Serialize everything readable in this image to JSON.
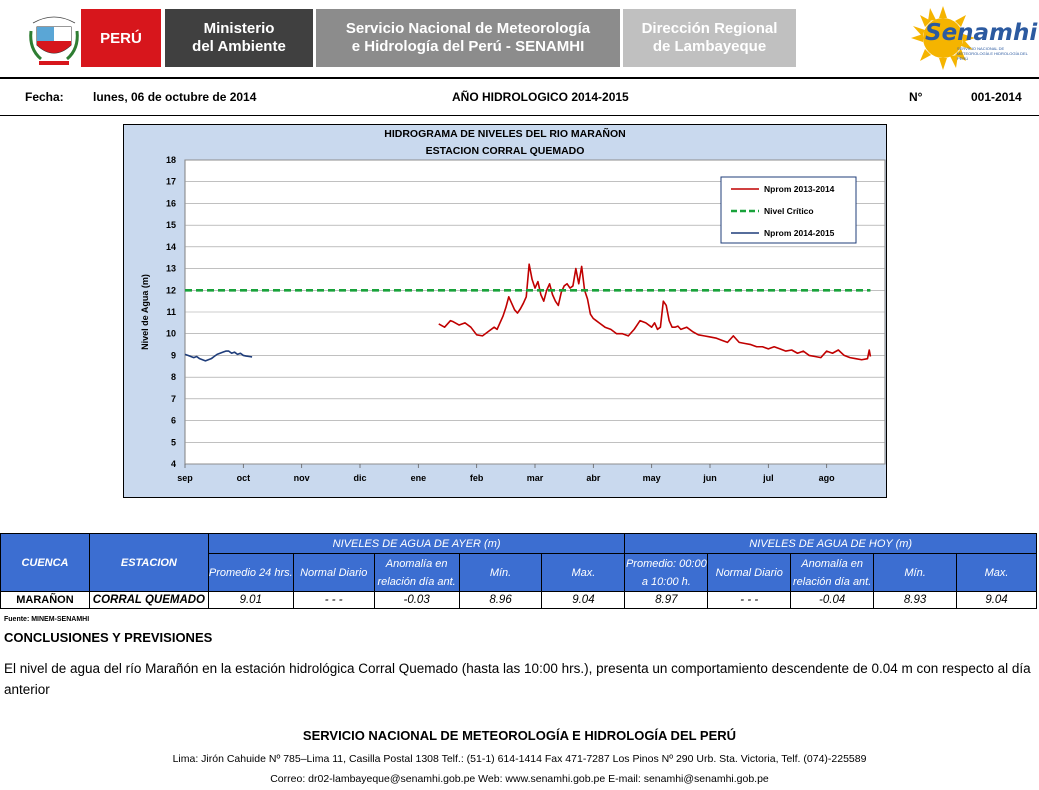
{
  "header": {
    "seal_text": "REPÚBLICA DEL PERÚ",
    "peru": "PERÚ",
    "ministerio_line1": "Ministerio",
    "ministerio_line2": "del Ambiente",
    "senamhi_line1": "Servicio Nacional de Meteorología",
    "senamhi_line2": "e Hidrología del Perú - SENAMHI",
    "direccion_line1": "Dirección Regional",
    "direccion_line2": "de Lambayeque",
    "logo_name": "Senamhi",
    "logo_sub": "SERVICIO NACIONAL DE METEOROLOGÍA E HIDROLOGÍA DEL PERÚ",
    "colors": {
      "peru_red": "#d7161c",
      "minam_gray": "#404040",
      "senamhi_gray": "#8c8c8c",
      "direccion_gray": "#c0c0c0",
      "sun": "#f5b400",
      "logo_blue": "#2c5aa0"
    }
  },
  "info": {
    "fecha_label": "Fecha:",
    "fecha_value": "lunes, 06 de octubre de 2014",
    "anio": "AÑO HIDROLOGICO 2014-2015",
    "numero_label": "N°",
    "numero_value": "001-2014"
  },
  "chart_data": {
    "type": "line",
    "title": "HIDROGRAMA  DE NIVELES  DEL RIO MARAÑON",
    "subtitle": "ESTACION  CORRAL QUEMADO",
    "ylabel": "Nivel de Agua (m)",
    "xlabel": "",
    "ylim": [
      4,
      18
    ],
    "yticks": [
      "4",
      "5",
      "6",
      "7",
      "8",
      "9",
      "10",
      "11",
      "12",
      "13",
      "14",
      "15",
      "16",
      "17",
      "18"
    ],
    "categories": [
      "sep",
      "oct",
      "nov",
      "dic",
      "ene",
      "feb",
      "mar",
      "abr",
      "may",
      "jun",
      "jul",
      "ago"
    ],
    "grid": true,
    "legend_position": "top-right",
    "background": "#c9d9ee",
    "series": [
      {
        "name": "Nprom 2013-2014",
        "color": "#c00000",
        "style": "solid",
        "x": [
          4.35,
          4.45,
          4.55,
          4.6,
          4.7,
          4.8,
          4.9,
          5.0,
          5.1,
          5.2,
          5.3,
          5.35,
          5.4,
          5.45,
          5.5,
          5.55,
          5.6,
          5.65,
          5.7,
          5.75,
          5.8,
          5.85,
          5.9,
          5.95,
          6.0,
          6.05,
          6.1,
          6.15,
          6.2,
          6.25,
          6.3,
          6.35,
          6.4,
          6.45,
          6.5,
          6.55,
          6.6,
          6.65,
          6.7,
          6.75,
          6.8,
          6.85,
          6.9,
          6.95,
          7.0,
          7.05,
          7.1,
          7.2,
          7.3,
          7.4,
          7.5,
          7.6,
          7.7,
          7.8,
          7.9,
          8.0,
          8.05,
          8.1,
          8.15,
          8.2,
          8.25,
          8.3,
          8.35,
          8.4,
          8.45,
          8.5,
          8.6,
          8.7,
          8.8,
          8.9,
          9.0,
          9.1,
          9.2,
          9.3,
          9.4,
          9.5,
          9.6,
          9.7,
          9.8,
          9.9,
          10.0,
          10.1,
          10.2,
          10.3,
          10.4,
          10.5,
          10.6,
          10.7,
          10.8,
          10.9,
          11.0,
          11.1,
          11.2,
          11.3,
          11.4,
          11.5,
          11.6,
          11.7,
          11.73,
          11.75
        ],
        "values": [
          10.45,
          10.3,
          10.6,
          10.55,
          10.4,
          10.5,
          10.3,
          9.95,
          9.9,
          10.1,
          10.3,
          10.2,
          10.5,
          10.8,
          11.2,
          11.7,
          11.4,
          11.1,
          10.95,
          11.15,
          11.4,
          11.7,
          13.2,
          12.5,
          12.1,
          12.4,
          11.8,
          11.5,
          12.0,
          12.3,
          11.8,
          11.5,
          11.3,
          11.9,
          12.2,
          12.3,
          12.1,
          12.2,
          13.0,
          12.3,
          13.1,
          12.0,
          11.6,
          10.9,
          10.7,
          10.6,
          10.5,
          10.3,
          10.2,
          10.0,
          10.0,
          9.9,
          10.2,
          10.6,
          10.5,
          10.3,
          10.5,
          10.2,
          10.3,
          11.5,
          11.3,
          10.6,
          10.3,
          10.3,
          10.35,
          10.2,
          10.3,
          10.1,
          9.95,
          9.9,
          9.85,
          9.8,
          9.7,
          9.6,
          9.9,
          9.6,
          9.55,
          9.5,
          9.4,
          9.4,
          9.3,
          9.4,
          9.3,
          9.2,
          9.25,
          9.1,
          9.2,
          9.0,
          8.95,
          8.9,
          9.2,
          9.1,
          9.25,
          9.0,
          8.9,
          8.85,
          8.8,
          8.85,
          9.25,
          8.95
        ]
      },
      {
        "name": "Nivel Crítico",
        "color": "#19a23b",
        "style": "dashed",
        "x": [
          0,
          11.75
        ],
        "values": [
          12.0,
          12.0
        ]
      },
      {
        "name": "Nprom 2014-2015",
        "color": "#1f3d7a",
        "style": "solid",
        "x": [
          0.0,
          0.05,
          0.1,
          0.15,
          0.2,
          0.25,
          0.3,
          0.35,
          0.4,
          0.45,
          0.5,
          0.55,
          0.6,
          0.65,
          0.7,
          0.75,
          0.8,
          0.85,
          0.9,
          0.95,
          1.0,
          1.05,
          1.1,
          1.15
        ],
        "values": [
          9.05,
          9.0,
          8.95,
          8.9,
          8.95,
          8.85,
          8.8,
          8.75,
          8.8,
          8.85,
          8.95,
          9.05,
          9.1,
          9.15,
          9.2,
          9.2,
          9.1,
          9.15,
          9.05,
          9.1,
          9.0,
          8.97,
          8.95,
          8.93
        ]
      }
    ]
  },
  "table": {
    "col_cuenca": "CUENCA",
    "col_estacion": "ESTACION",
    "group_ayer": "NIVELES DE AGUA DE AYER (m)",
    "group_hoy": "NIVELES DE AGUA DE HOY (m)",
    "sub_ayer": [
      "Promedio  24 hrs.",
      "Normal Diario",
      "Anomalía en relación día ant.",
      "Mín.",
      "Max."
    ],
    "sub_hoy": [
      "Promedio: 00:00 a 10:00  h.",
      "Normal Diario",
      "Anomalía en relación día ant.",
      "Mín.",
      "Max."
    ],
    "row": {
      "cuenca": "MARAÑON",
      "estacion": "CORRAL QUEMADO",
      "ayer": [
        "9.01",
        "- - -",
        "-0.03",
        "8.96",
        "9.04"
      ],
      "hoy": [
        "8.97",
        "- - -",
        "-0.04",
        "8.93",
        "9.04"
      ]
    }
  },
  "fuente": "Fuente: MINEM-SENAMHI",
  "conclusiones": {
    "title": "CONCLUSIONES Y PREVISIONES",
    "text": "El nivel de agua del río Marañón en la estación hidrológica Corral Quemado (hasta las 10:00 hrs.), presenta un comportamiento descendente de 0.04 m con respecto al día anterior"
  },
  "footer": {
    "line1": "SERVICIO NACIONAL DE METEOROLOGÍA E HIDROLOGÍA DEL PERÚ",
    "line2": "Lima: Jirón  Cahuide Nº 785–Lima 11,  Casilla Postal 1308 Telf.: (51-1) 614-1414 Fax 471-7287  Los Pinos Nº 290 Urb. Sta. Victoria,  Telf. (074)-225589",
    "line3": "Correo: dr02-lambayeque@senamhi.gob.pe Web: www.senamhi.gob.pe  E-mail: senamhi@senamhi.gob.pe"
  }
}
